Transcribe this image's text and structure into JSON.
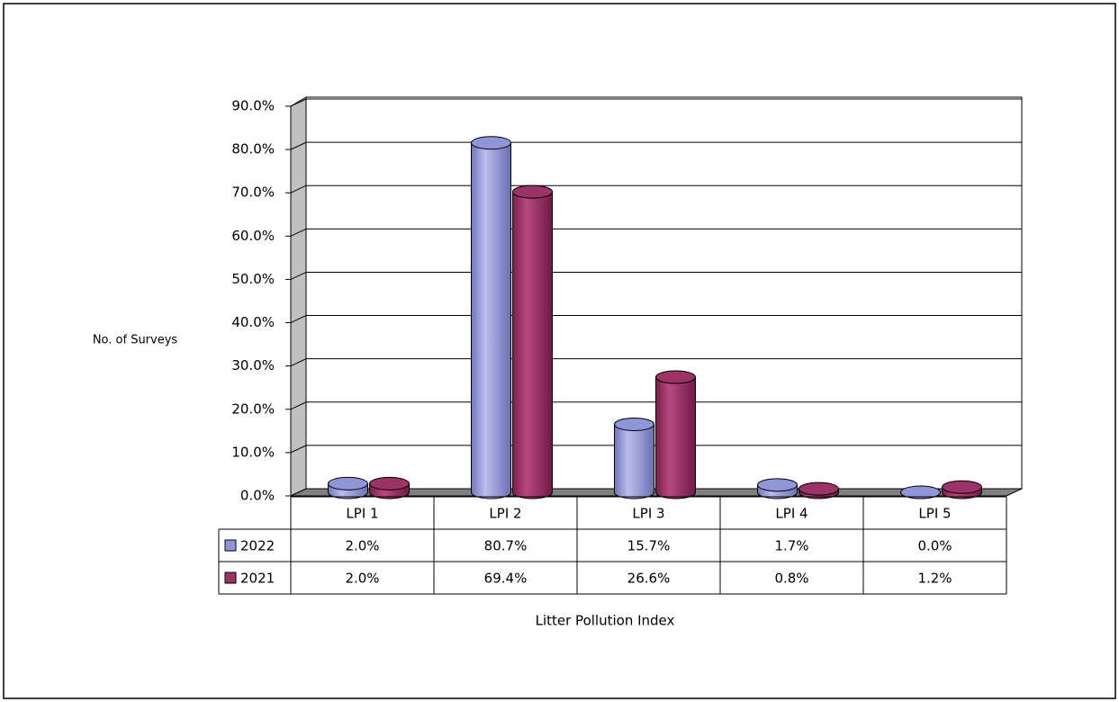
{
  "chart_data": {
    "type": "bar3d",
    "y_label": "No. of Surveys",
    "x_label": "Litter Pollution Index",
    "categories": [
      "LPI 1",
      "LPI 2",
      "LPI 3",
      "LPI 4",
      "LPI 5"
    ],
    "series": [
      {
        "name": "2022",
        "color": "#8f96d8",
        "values": [
          2.0,
          80.7,
          15.7,
          1.7,
          0.0
        ],
        "value_labels": [
          "2.0%",
          "80.7%",
          "15.7%",
          "1.7%",
          "0.0%"
        ]
      },
      {
        "name": "2021",
        "color": "#9b3366",
        "values": [
          2.0,
          69.4,
          26.6,
          0.8,
          1.2
        ],
        "value_labels": [
          "2.0%",
          "69.4%",
          "26.6%",
          "0.8%",
          "1.2%"
        ]
      }
    ],
    "ylim": [
      0,
      90
    ],
    "yticks": [
      {
        "value": 0,
        "label": "0.0%"
      },
      {
        "value": 10,
        "label": "10.0%"
      },
      {
        "value": 20,
        "label": "20.0%"
      },
      {
        "value": 30,
        "label": "30.0%"
      },
      {
        "value": 40,
        "label": "40.0%"
      },
      {
        "value": 50,
        "label": "50.0%"
      },
      {
        "value": 60,
        "label": "60.0%"
      },
      {
        "value": 70,
        "label": "70.0%"
      },
      {
        "value": 80,
        "label": "80.0%"
      },
      {
        "value": 90,
        "label": "90.0%"
      }
    ],
    "grid": true
  }
}
